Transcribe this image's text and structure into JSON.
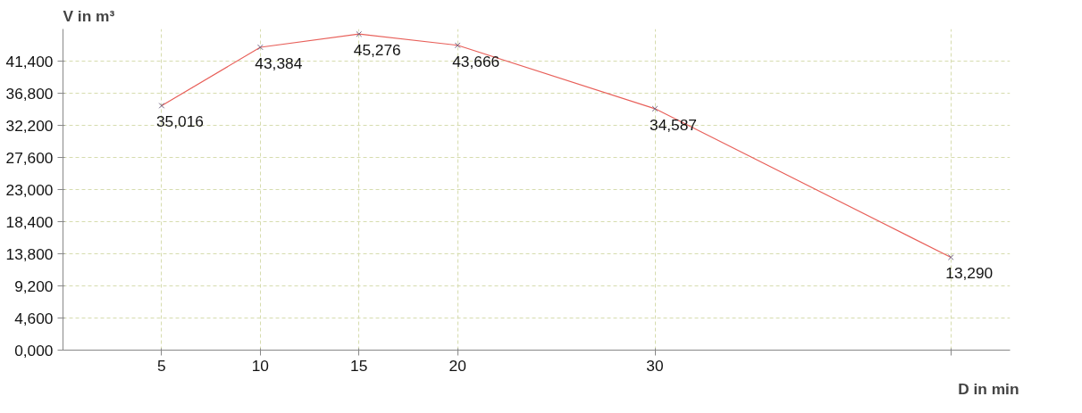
{
  "chart_data": {
    "type": "line",
    "xlabel": "D in min",
    "ylabel": "V in m³",
    "x": [
      5,
      10,
      15,
      20,
      30,
      45
    ],
    "series": [
      {
        "color": "#e8605a",
        "values": [
          35016,
          43384,
          45276,
          43666,
          34587,
          13290
        ],
        "value_labels": [
          "35,016",
          "43,384",
          "45,276",
          "43,666",
          "34,587",
          "13,290"
        ]
      }
    ],
    "xlim": [
      0,
      48
    ],
    "ylim": [
      0,
      46000
    ],
    "xticks": [
      5,
      10,
      15,
      20,
      30,
      {
        "value": 45,
        "label": null
      }
    ],
    "yticks": [
      {
        "value": 0,
        "label": "0,000"
      },
      {
        "value": 4600,
        "label": "4,600"
      },
      {
        "value": 9200,
        "label": "9,200"
      },
      {
        "value": 13800,
        "label": "13,800"
      },
      {
        "value": 18400,
        "label": "18,400"
      },
      {
        "value": 23000,
        "label": "23,000"
      },
      {
        "value": 27600,
        "label": "27,600"
      },
      {
        "value": 32200,
        "label": "32,200"
      },
      {
        "value": 36800,
        "label": "36,800"
      },
      {
        "value": 41400,
        "label": "41,400"
      }
    ],
    "grid": true,
    "marker": "cross",
    "line_style": "solid"
  }
}
